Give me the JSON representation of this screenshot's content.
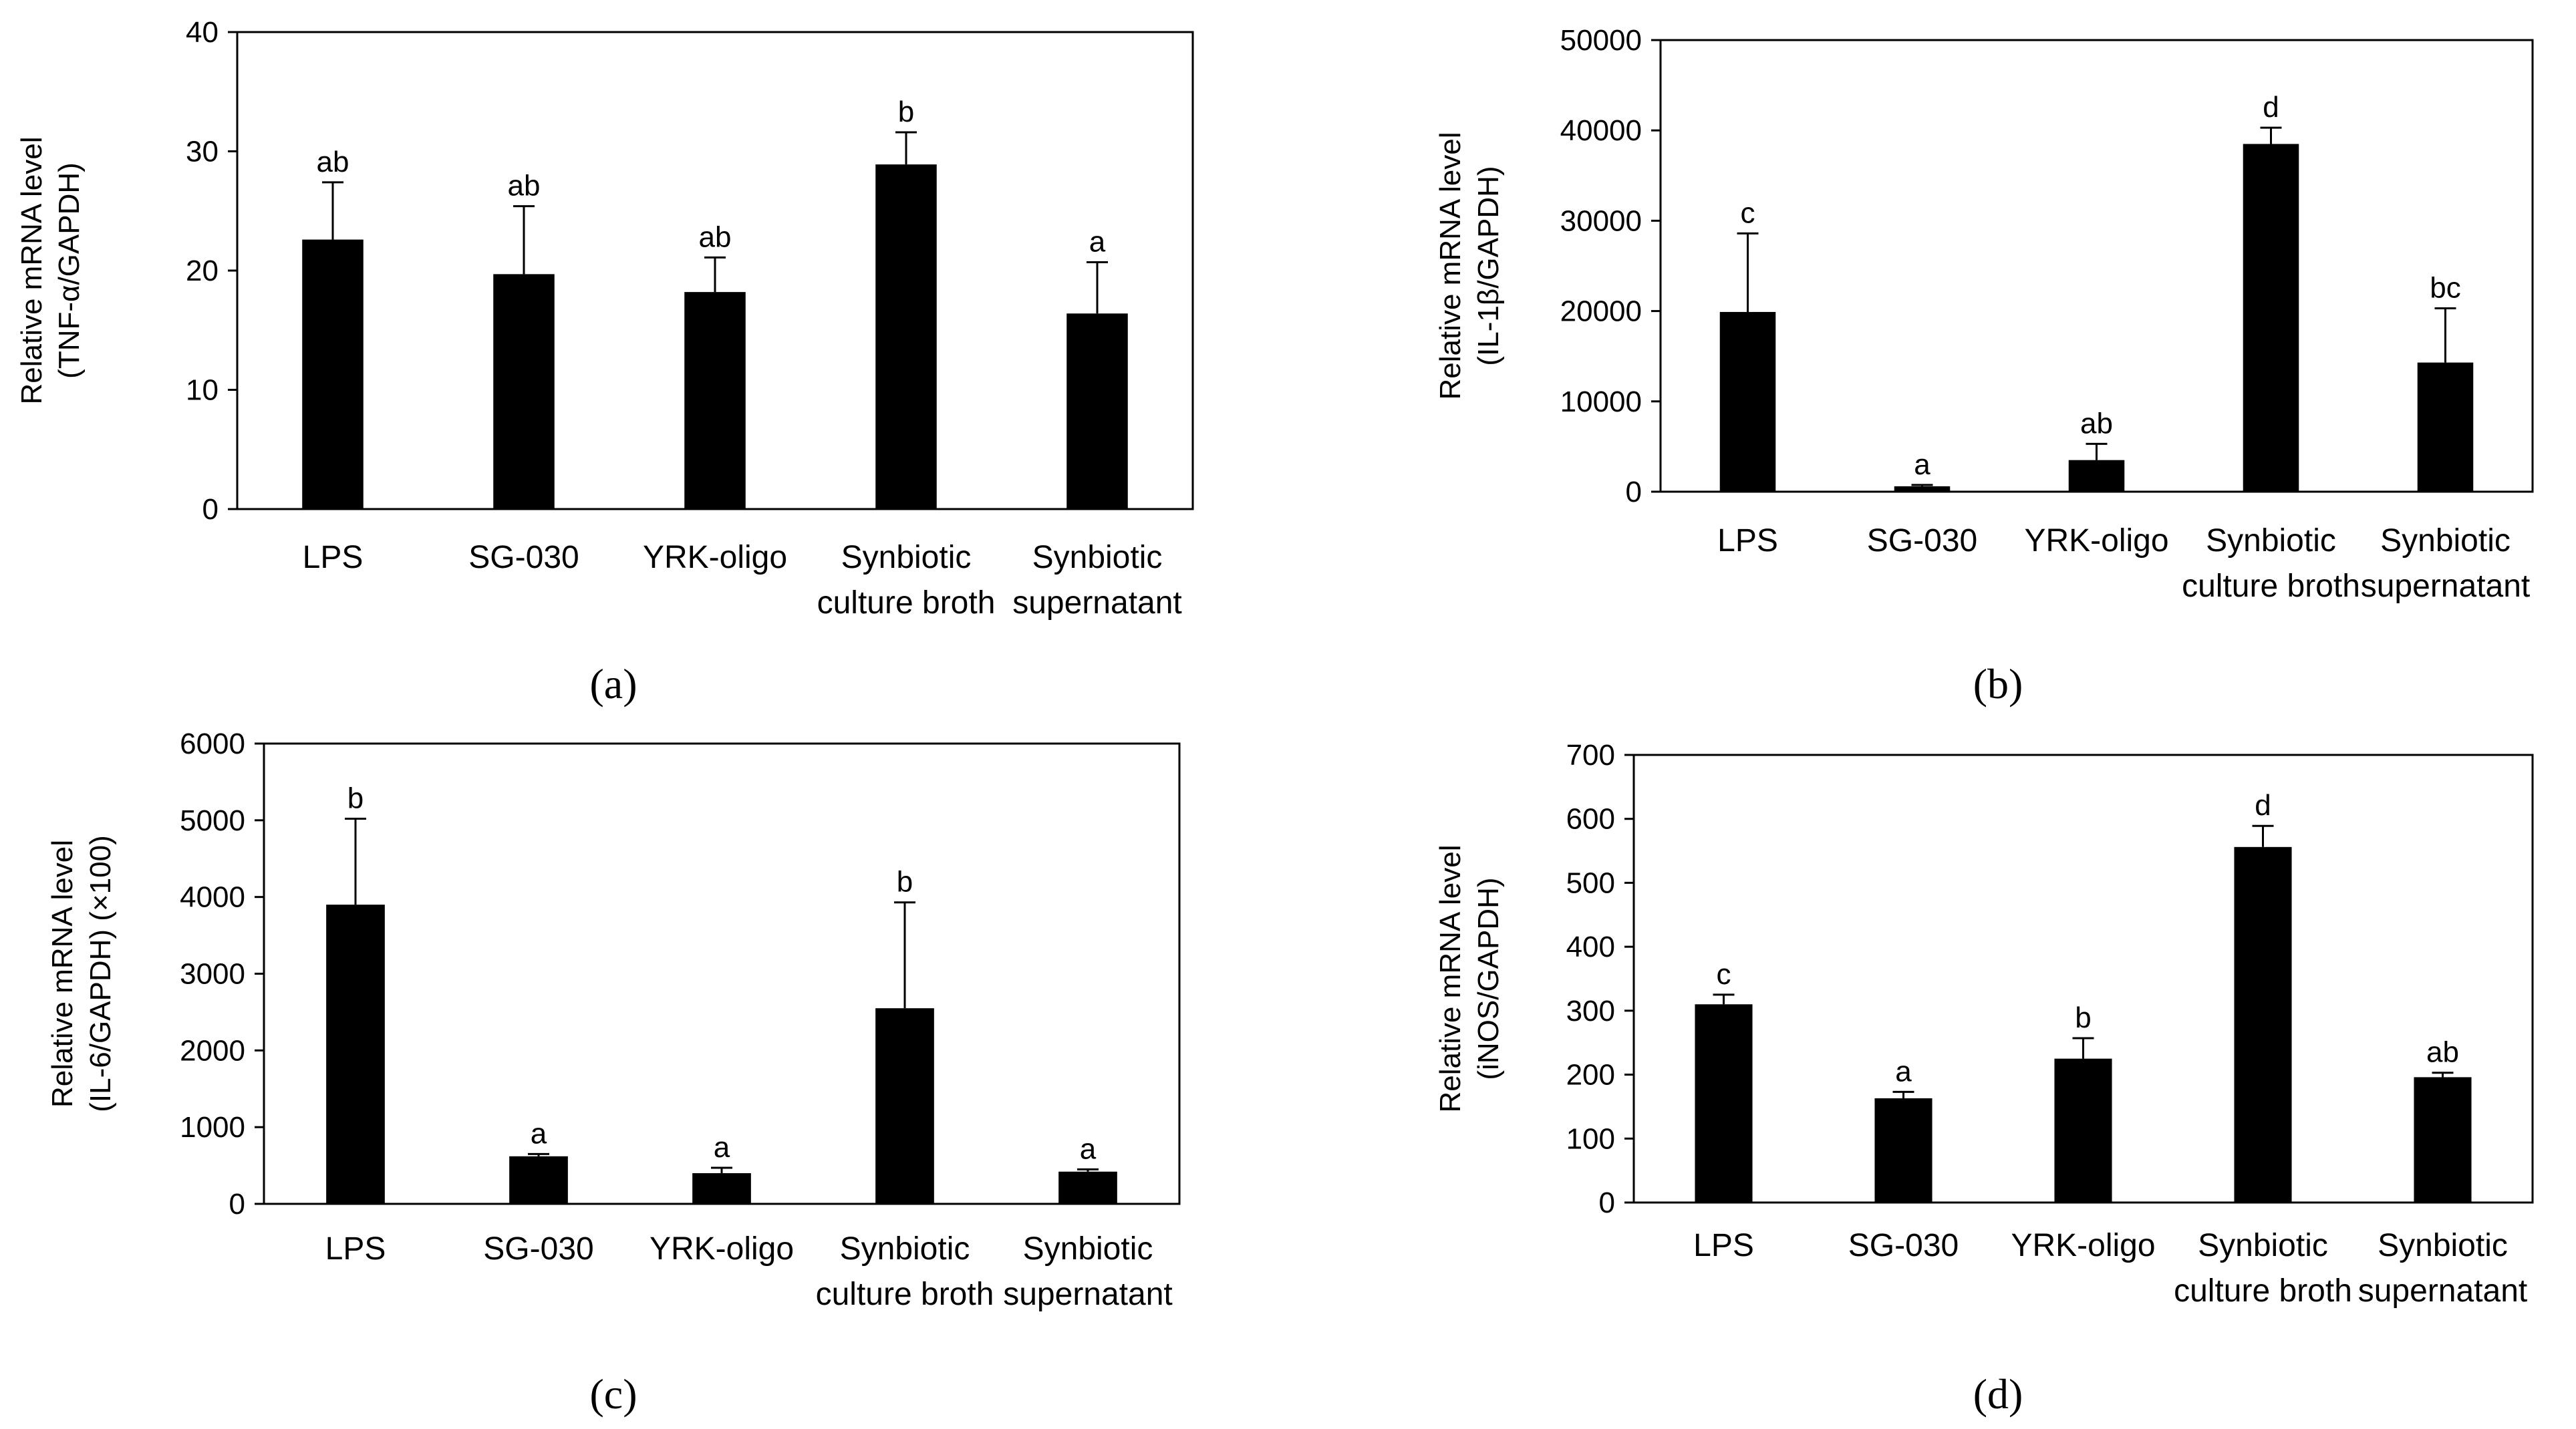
{
  "chart_data": [
    {
      "type": "bar",
      "panel": "a",
      "panel_label": "(a)",
      "ylabel_line1": "Relative mRNA level",
      "ylabel_line2": "(TNF-α/GAPDH)",
      "ylim": [
        0,
        40
      ],
      "yticks": [
        0,
        10,
        20,
        30,
        40
      ],
      "categories": [
        [
          "LPS"
        ],
        [
          "SG-030"
        ],
        [
          "YRK-oligo"
        ],
        [
          "Synbiotic",
          "culture broth"
        ],
        [
          "Synbiotic",
          "supernatant"
        ]
      ],
      "values": [
        22.6,
        19.7,
        18.2,
        28.9,
        16.4
      ],
      "errors": [
        4.8,
        5.7,
        2.9,
        2.7,
        4.3
      ],
      "significance": [
        "ab",
        "ab",
        "ab",
        "b",
        "a"
      ]
    },
    {
      "type": "bar",
      "panel": "b",
      "panel_label": "(b)",
      "ylabel_line1": "Relative mRNA level",
      "ylabel_line2": "(IL-1β/GAPDH)",
      "ylim": [
        0,
        50000
      ],
      "yticks": [
        0,
        10000,
        20000,
        30000,
        40000,
        50000
      ],
      "categories": [
        [
          "LPS"
        ],
        [
          "SG-030"
        ],
        [
          "YRK-oligo"
        ],
        [
          "Synbiotic",
          "culture broth"
        ],
        [
          "Synbiotic",
          "supernatant"
        ]
      ],
      "values": [
        19900,
        600,
        3500,
        38500,
        14300
      ],
      "errors": [
        8700,
        150,
        1800,
        1800,
        6000
      ],
      "significance": [
        "c",
        "a",
        "ab",
        "d",
        "bc"
      ]
    },
    {
      "type": "bar",
      "panel": "c",
      "panel_label": "(c)",
      "ylabel_line1": "Relative mRNA level",
      "ylabel_line2": "(IL-6/GAPDH) (×100)",
      "ylim": [
        0,
        6000
      ],
      "yticks": [
        0,
        1000,
        2000,
        3000,
        4000,
        5000,
        6000
      ],
      "categories": [
        [
          "LPS"
        ],
        [
          "SG-030"
        ],
        [
          "YRK-oligo"
        ],
        [
          "Synbiotic",
          "culture broth"
        ],
        [
          "Synbiotic",
          "supernatant"
        ]
      ],
      "values": [
        3900,
        620,
        400,
        2550,
        420
      ],
      "errors": [
        1120,
        30,
        70,
        1380,
        30
      ],
      "significance": [
        "b",
        "a",
        "a",
        "b",
        "a"
      ]
    },
    {
      "type": "bar",
      "panel": "d",
      "panel_label": "(d)",
      "ylabel_line1": "Relative mRNA level",
      "ylabel_line2": "(iNOS/GAPDH)",
      "ylim": [
        0,
        700
      ],
      "yticks": [
        0,
        100,
        200,
        300,
        400,
        500,
        600,
        700
      ],
      "categories": [
        [
          "LPS"
        ],
        [
          "SG-030"
        ],
        [
          "YRK-oligo"
        ],
        [
          "Synbiotic",
          "culture broth"
        ],
        [
          "Synbiotic",
          "supernatant"
        ]
      ],
      "values": [
        310,
        163,
        225,
        556,
        196
      ],
      "errors": [
        15,
        10,
        32,
        33,
        7
      ],
      "significance": [
        "c",
        "a",
        "b",
        "d",
        "ab"
      ]
    }
  ]
}
